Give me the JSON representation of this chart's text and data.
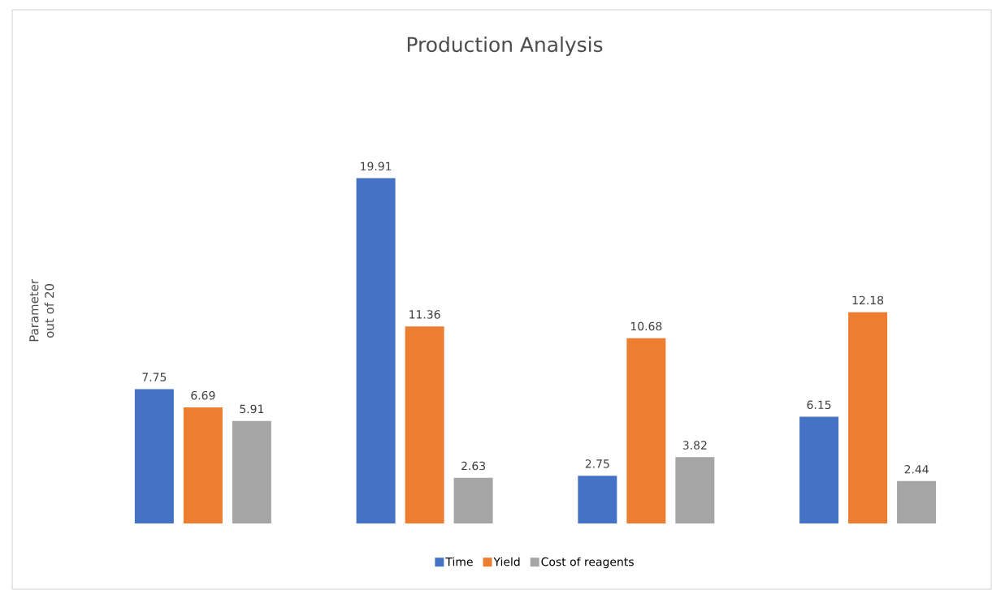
{
  "chart_data": {
    "type": "bar",
    "title": "Production Analysis",
    "ylabel": "Parameter out of 20",
    "categories": [
      null,
      null,
      null,
      null
    ],
    "series": [
      {
        "name": "Time",
        "color": "#4472c4",
        "values": [
          7.75,
          19.91,
          2.75,
          6.15
        ]
      },
      {
        "name": "Yield",
        "color": "#ed7d31",
        "values": [
          6.69,
          11.36,
          10.68,
          12.18
        ]
      },
      {
        "name": "Cost of reagents",
        "color": "#a5a5a5",
        "values": [
          5.91,
          2.63,
          3.82,
          2.44
        ]
      }
    ],
    "data_labels": true,
    "legend": "bottom"
  }
}
